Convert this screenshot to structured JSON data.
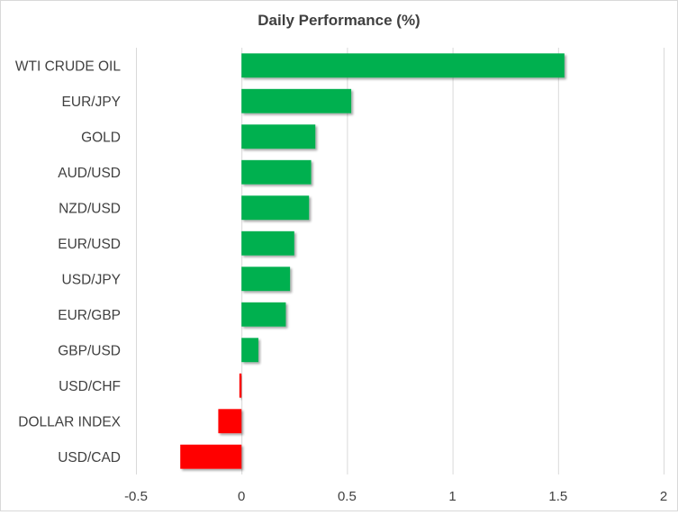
{
  "chart_data": {
    "type": "bar",
    "orientation": "horizontal",
    "title": "Daily Performance  (%)",
    "categories": [
      "WTI CRUDE OIL",
      "EUR/JPY",
      "GOLD",
      "AUD/USD",
      "NZD/USD",
      "EUR/USD",
      "USD/JPY",
      "EUR/GBP",
      "GBP/USD",
      "USD/CHF",
      "DOLLAR INDEX",
      "USD/CAD"
    ],
    "values": [
      1.53,
      0.52,
      0.35,
      0.33,
      0.32,
      0.25,
      0.23,
      0.21,
      0.08,
      -0.01,
      -0.11,
      -0.29
    ],
    "xlim": [
      -0.5,
      2
    ],
    "xticks": [
      -0.5,
      0,
      0.5,
      1,
      1.5,
      2
    ],
    "xtick_labels": [
      "-0.5",
      "0",
      "0.5",
      "1",
      "1.5",
      "2"
    ],
    "grid": "vertical",
    "legend": "none",
    "colors": {
      "positive": "#00b050",
      "negative": "#ff0000",
      "grid": "#d9d9d9"
    }
  }
}
